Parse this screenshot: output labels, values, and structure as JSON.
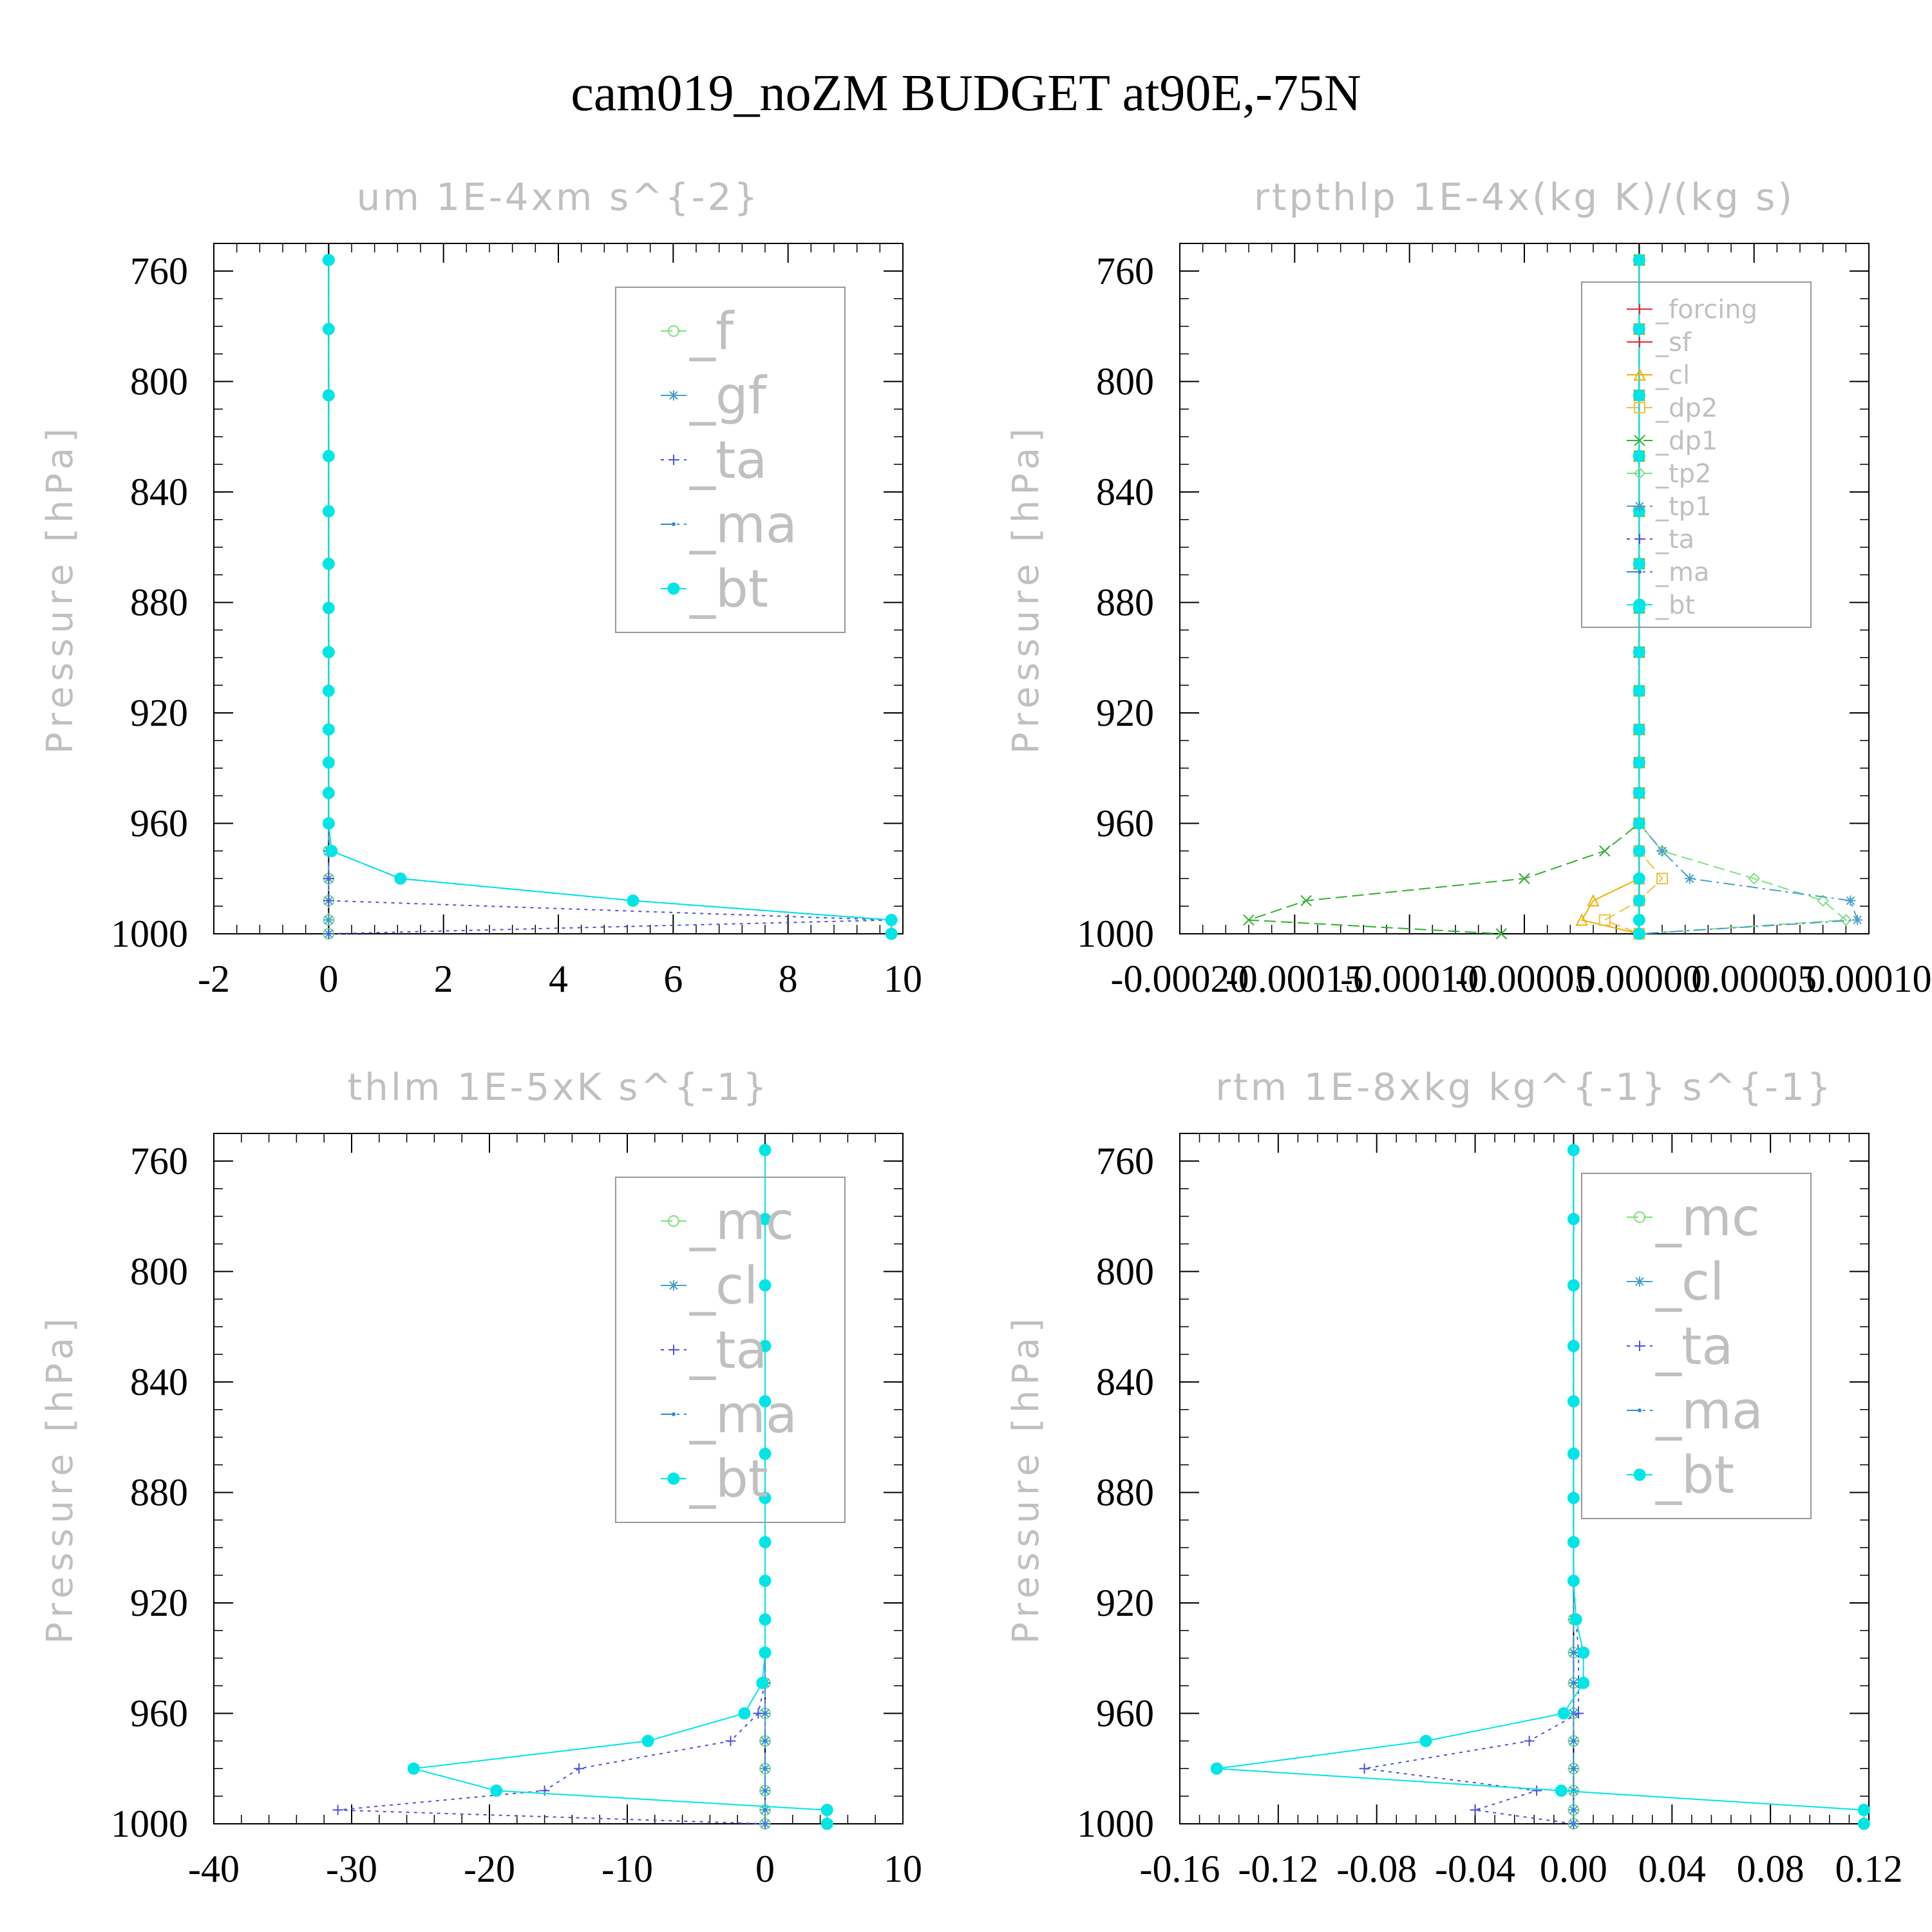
{
  "title": "cam019_noZM  BUDGET at90E,-75N",
  "chart_data": [
    {
      "type": "line",
      "title": "um   1E-4xm s^{-2}",
      "ylabel": "Pressure [hPa]",
      "xlim": [
        -2,
        10
      ],
      "ylim": [
        1000,
        750
      ],
      "xticks": [
        -2,
        0,
        2,
        4,
        6,
        8,
        10
      ],
      "xtick_labels": [
        "-2",
        "0",
        "2",
        "4",
        "6",
        "8",
        "10"
      ],
      "yticks": [
        760,
        800,
        840,
        880,
        920,
        960,
        1000
      ],
      "ytick_labels": [
        "760",
        "800",
        "840",
        "880",
        "920",
        "960",
        "1000"
      ],
      "grid": false,
      "legend_position": "top-right",
      "legend_font": "large",
      "x": [
        756,
        781,
        805,
        827,
        847,
        866,
        882,
        898,
        912,
        926,
        938,
        949,
        960,
        970,
        980,
        988,
        995,
        1000
      ],
      "series": [
        {
          "name": "_f",
          "color": "#7fe07f",
          "marker": "circle-open",
          "dash": "dashed",
          "values": [
            0,
            0,
            0,
            0,
            0,
            0,
            0,
            0,
            0,
            0,
            0,
            0,
            0,
            0,
            0,
            0,
            0,
            0
          ]
        },
        {
          "name": "_gf",
          "color": "#4aa0c8",
          "marker": "asterisk",
          "dash": "dashed",
          "values": [
            0,
            0,
            0,
            0,
            0,
            0,
            0,
            0,
            0,
            0,
            0,
            0,
            0,
            0,
            0,
            0,
            0,
            0
          ]
        },
        {
          "name": "_ta",
          "color": "#5050e0",
          "marker": "plus",
          "dash": "dotted",
          "values": [
            0,
            0,
            0,
            0,
            0,
            0,
            0,
            0,
            0,
            0,
            0,
            0,
            0,
            0,
            0,
            0,
            9.8,
            0
          ]
        },
        {
          "name": "_ma",
          "color": "#2e8ad8",
          "marker": "dot",
          "dash": "dashdot",
          "values": [
            0,
            0,
            0,
            0,
            0,
            0,
            0,
            0,
            0,
            0,
            0,
            0,
            0,
            0.05,
            1.25,
            5.3,
            9.8,
            9.8
          ]
        },
        {
          "name": "_bt",
          "color": "#00e5e5",
          "marker": "filled",
          "dash": "solid",
          "values": [
            0,
            0,
            0,
            0,
            0,
            0,
            0,
            0,
            0,
            0,
            0,
            0,
            0,
            0.05,
            1.25,
            5.3,
            9.8,
            9.8
          ]
        }
      ]
    },
    {
      "type": "line",
      "title": "rtpthlp   1E-4x(kg K)/(kg s)",
      "ylabel": "Pressure [hPa]",
      "xlim": [
        -0.0002,
        0.0001
      ],
      "ylim": [
        1000,
        750
      ],
      "xticks": [
        -0.0002,
        -0.00015,
        -0.0001,
        -5e-05,
        0,
        5e-05,
        0.0001
      ],
      "xtick_labels": [
        "-0.00020",
        "-0.00015",
        "-0.00010",
        "-0.00005",
        "0.00000",
        "0.00005",
        "0.00010"
      ],
      "yticks": [
        760,
        800,
        840,
        880,
        920,
        960,
        1000
      ],
      "ytick_labels": [
        "760",
        "800",
        "840",
        "880",
        "920",
        "960",
        "1000"
      ],
      "grid": false,
      "legend_position": "top-right",
      "legend_font": "small",
      "x": [
        756,
        781,
        805,
        827,
        847,
        866,
        882,
        898,
        912,
        926,
        938,
        949,
        960,
        970,
        980,
        988,
        995,
        1000
      ],
      "series": [
        {
          "name": "_forcing",
          "color": "#e03030",
          "marker": "plus",
          "dash": "solid",
          "values": [
            0,
            0,
            0,
            0,
            0,
            0,
            0,
            0,
            0,
            0,
            0,
            0,
            0,
            0,
            0,
            0,
            0,
            0
          ]
        },
        {
          "name": "_sf",
          "color": "#e03030",
          "marker": "plus",
          "dash": "solid",
          "values": [
            0,
            0,
            0,
            0,
            0,
            0,
            0,
            0,
            0,
            0,
            0,
            0,
            0,
            0,
            0,
            0,
            0,
            0
          ]
        },
        {
          "name": "_cl",
          "color": "#f0b000",
          "marker": "triangle",
          "dash": "solid",
          "values": [
            0,
            0,
            0,
            0,
            0,
            0,
            0,
            0,
            0,
            0,
            0,
            0,
            0,
            0,
            0,
            -2e-05,
            -2.5e-05,
            0
          ]
        },
        {
          "name": "_dp2",
          "color": "#f0c040",
          "marker": "square",
          "dash": "dashed",
          "values": [
            0,
            0,
            0,
            0,
            0,
            0,
            0,
            0,
            0,
            0,
            0,
            0,
            0,
            0,
            1e-05,
            0,
            -1.5e-05,
            0
          ]
        },
        {
          "name": "_dp1",
          "color": "#30b030",
          "marker": "x",
          "dash": "dashed",
          "values": [
            0,
            0,
            0,
            0,
            0,
            0,
            0,
            0,
            0,
            0,
            0,
            0,
            0,
            -1.5e-05,
            -5e-05,
            -0.000145,
            -0.00017,
            -6e-05
          ]
        },
        {
          "name": "_tp2",
          "color": "#80e080",
          "marker": "diamond",
          "dash": "dashed",
          "values": [
            0,
            0,
            0,
            0,
            0,
            0,
            0,
            0,
            0,
            0,
            0,
            0,
            0,
            1e-05,
            5e-05,
            8e-05,
            9e-05,
            0
          ]
        },
        {
          "name": "_tp1",
          "color": "#4aa0c8",
          "marker": "asterisk",
          "dash": "dashdot",
          "values": [
            0,
            0,
            0,
            0,
            0,
            0,
            0,
            0,
            0,
            0,
            0,
            0,
            0,
            1e-05,
            2.2e-05,
            9.2e-05,
            9.5e-05,
            0
          ]
        },
        {
          "name": "_ta",
          "color": "#5050e0",
          "marker": "plus",
          "dash": "dotted",
          "values": [
            0,
            0,
            0,
            0,
            0,
            0,
            0,
            0,
            0,
            0,
            0,
            0,
            0,
            0,
            0,
            0,
            0,
            0
          ]
        },
        {
          "name": "_ma",
          "color": "#2e8ad8",
          "marker": "dot",
          "dash": "dashdot",
          "values": [
            0,
            0,
            0,
            0,
            0,
            0,
            0,
            0,
            0,
            0,
            0,
            0,
            0,
            0,
            0,
            0,
            0,
            0
          ]
        },
        {
          "name": "_bt",
          "color": "#00e5e5",
          "marker": "filled",
          "dash": "solid",
          "values": [
            0,
            0,
            0,
            0,
            0,
            0,
            0,
            0,
            0,
            0,
            0,
            0,
            0,
            0,
            0,
            0,
            0,
            0
          ]
        }
      ]
    },
    {
      "type": "line",
      "title": "thlm   1E-5xK s^{-1}",
      "ylabel": "Pressure [hPa]",
      "xlim": [
        -40,
        10
      ],
      "ylim": [
        1000,
        750
      ],
      "xticks": [
        -40,
        -30,
        -20,
        -10,
        0,
        10
      ],
      "xtick_labels": [
        "-40",
        "-30",
        "-20",
        "-10",
        "0",
        "10"
      ],
      "yticks": [
        760,
        800,
        840,
        880,
        920,
        960,
        1000
      ],
      "ytick_labels": [
        "760",
        "800",
        "840",
        "880",
        "920",
        "960",
        "1000"
      ],
      "grid": false,
      "legend_position": "top-right",
      "legend_font": "large",
      "x": [
        756,
        781,
        805,
        827,
        847,
        866,
        882,
        898,
        912,
        926,
        938,
        949,
        960,
        970,
        980,
        988,
        995,
        1000
      ],
      "series": [
        {
          "name": "_mc",
          "color": "#7fe07f",
          "marker": "circle-open",
          "dash": "dashed",
          "values": [
            0,
            0,
            0,
            0,
            0,
            0,
            0,
            0,
            0,
            0,
            0,
            0,
            0,
            0,
            0,
            0,
            0,
            0
          ]
        },
        {
          "name": "_cl",
          "color": "#4aa0c8",
          "marker": "asterisk",
          "dash": "dashed",
          "values": [
            0,
            0,
            0,
            0,
            0,
            0,
            0,
            0,
            0,
            0,
            0,
            0,
            0,
            0,
            0,
            0,
            0,
            0
          ]
        },
        {
          "name": "_ta",
          "color": "#5050e0",
          "marker": "plus",
          "dash": "dotted",
          "values": [
            0,
            0,
            0,
            0,
            0,
            0,
            0,
            0,
            0,
            0,
            0,
            0,
            -0.5,
            -2.5,
            -13.5,
            -16,
            -31,
            0
          ]
        },
        {
          "name": "_ma",
          "color": "#2e8ad8",
          "marker": "dot",
          "dash": "dashdot",
          "values": [
            0,
            0,
            0,
            0,
            0,
            0,
            0,
            0,
            0,
            0,
            0,
            0,
            0,
            0,
            0,
            0,
            0,
            0
          ]
        },
        {
          "name": "_bt",
          "color": "#00e5e5",
          "marker": "filled",
          "dash": "solid",
          "values": [
            0,
            0,
            0,
            0,
            0,
            0,
            0,
            0,
            0,
            0,
            0,
            -0.2,
            -1.5,
            -8.5,
            -25.5,
            -19.5,
            4.5,
            4.5
          ]
        }
      ]
    },
    {
      "type": "line",
      "title": "rtm   1E-8xkg kg^{-1} s^{-1}",
      "ylabel": "Pressure [hPa]",
      "xlim": [
        -0.16,
        0.12
      ],
      "ylim": [
        1000,
        750
      ],
      "xticks": [
        -0.16,
        -0.12,
        -0.08,
        -0.04,
        0,
        0.04,
        0.08,
        0.12
      ],
      "xtick_labels": [
        "-0.16",
        "-0.12",
        "-0.08",
        "-0.04",
        "0.00",
        "0.04",
        "0.08",
        "0.12"
      ],
      "yticks": [
        760,
        800,
        840,
        880,
        920,
        960,
        1000
      ],
      "ytick_labels": [
        "760",
        "800",
        "840",
        "880",
        "920",
        "960",
        "1000"
      ],
      "grid": false,
      "legend_position": "top-right",
      "legend_font": "large",
      "x": [
        756,
        781,
        805,
        827,
        847,
        866,
        882,
        898,
        912,
        926,
        938,
        949,
        960,
        970,
        980,
        988,
        995,
        1000
      ],
      "series": [
        {
          "name": "_mc",
          "color": "#7fe07f",
          "marker": "circle-open",
          "dash": "dashed",
          "values": [
            0,
            0,
            0,
            0,
            0,
            0,
            0,
            0,
            0,
            0,
            0,
            0,
            0,
            0,
            0,
            0,
            0,
            0
          ]
        },
        {
          "name": "_cl",
          "color": "#4aa0c8",
          "marker": "asterisk",
          "dash": "dashed",
          "values": [
            0,
            0,
            0,
            0,
            0,
            0,
            0,
            0,
            0,
            0,
            0,
            0,
            0,
            0,
            0,
            0,
            0,
            0
          ]
        },
        {
          "name": "_ta",
          "color": "#5050e0",
          "marker": "plus",
          "dash": "dotted",
          "values": [
            0,
            0,
            0,
            0,
            0,
            0,
            0,
            0,
            0,
            0.001,
            0.002,
            0.002,
            0.002,
            -0.018,
            -0.085,
            -0.015,
            -0.04,
            0
          ]
        },
        {
          "name": "_ma",
          "color": "#2e8ad8",
          "marker": "dot",
          "dash": "dashdot",
          "values": [
            0,
            0,
            0,
            0,
            0,
            0,
            0,
            0,
            0,
            0,
            0,
            0,
            0,
            0,
            0,
            0,
            0,
            0
          ]
        },
        {
          "name": "_bt",
          "color": "#00e5e5",
          "marker": "filled",
          "dash": "solid",
          "values": [
            0,
            0,
            0,
            0,
            0,
            0,
            0,
            0,
            0,
            0.001,
            0.004,
            0.004,
            -0.004,
            -0.06,
            -0.145,
            -0.005,
            0.118,
            0.118
          ]
        }
      ]
    }
  ]
}
